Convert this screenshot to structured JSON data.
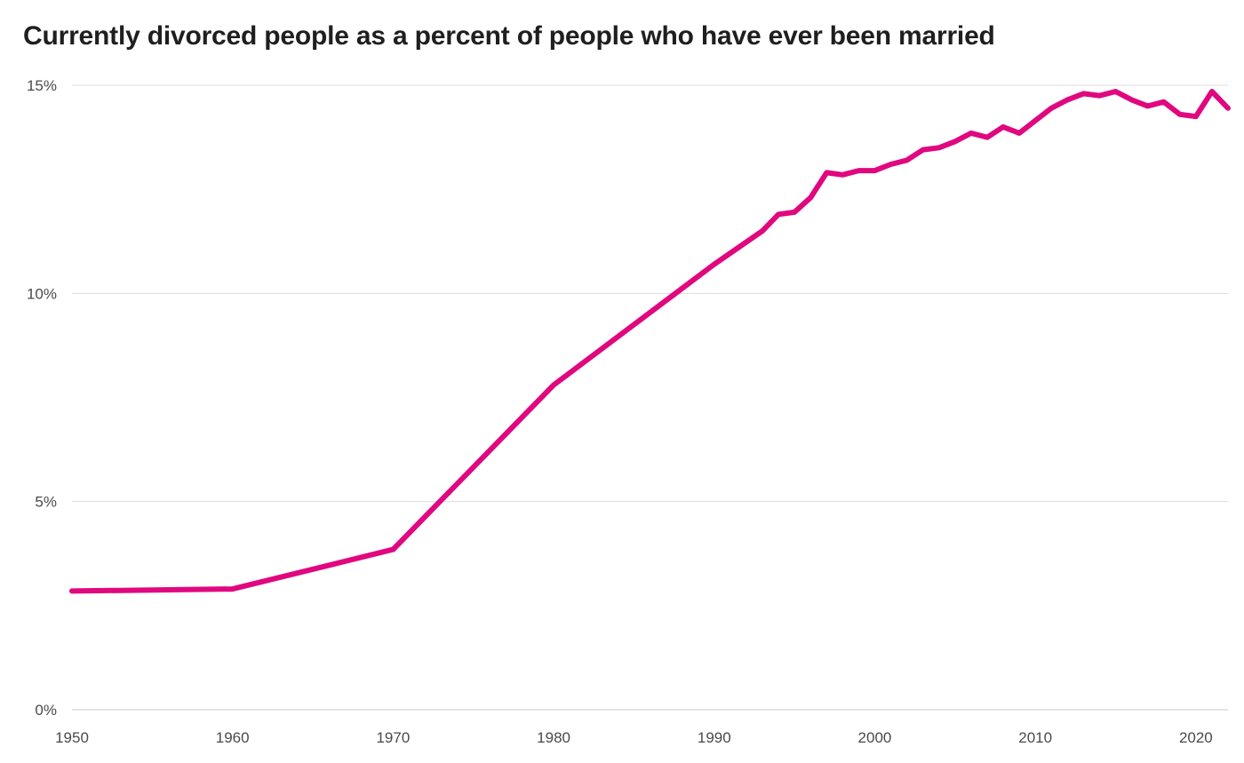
{
  "chart_data": {
    "type": "line",
    "title": "Currently divorced people as a percent of people who have ever been married",
    "xlabel": "",
    "ylabel": "",
    "xlim": [
      1950,
      2022
    ],
    "ylim": [
      0,
      15
    ],
    "x_ticks": [
      1950,
      1960,
      1970,
      1980,
      1990,
      2000,
      2010,
      2020
    ],
    "y_ticks": [
      0,
      5,
      10,
      15
    ],
    "y_tick_labels": [
      "0%",
      "5%",
      "10%",
      "15%"
    ],
    "grid": "horizontal",
    "line_color": "#e0077f",
    "series": [
      {
        "x": [
          1950,
          1960,
          1970,
          1980,
          1990,
          1993,
          1994,
          1995,
          1996,
          1997,
          1998,
          1999,
          2000,
          2001,
          2002,
          2003,
          2004,
          2005,
          2006,
          2007,
          2008,
          2009,
          2010,
          2011,
          2012,
          2013,
          2014,
          2015,
          2016,
          2017,
          2018,
          2019,
          2020,
          2021,
          2022
        ],
        "values": [
          2.85,
          2.9,
          3.85,
          7.8,
          10.7,
          11.5,
          11.9,
          11.95,
          12.3,
          12.9,
          12.85,
          12.95,
          12.95,
          13.1,
          13.2,
          13.45,
          13.5,
          13.65,
          13.85,
          13.75,
          14.0,
          13.85,
          14.15,
          14.45,
          14.65,
          14.8,
          14.75,
          14.85,
          14.65,
          14.5,
          14.6,
          14.3,
          14.25,
          14.85,
          14.45
        ]
      }
    ]
  }
}
